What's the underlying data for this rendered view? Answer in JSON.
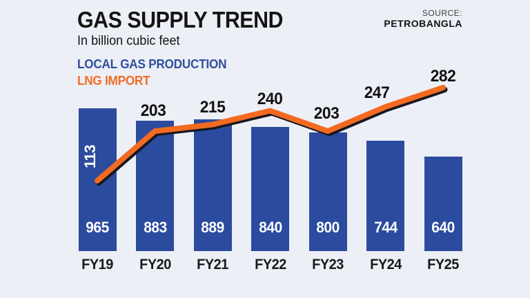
{
  "header": {
    "title": "GAS SUPPLY TREND",
    "subtitle": "In billion cubic feet",
    "source_label": "SOURCE:",
    "source_value": "PETROBANGLA"
  },
  "legend": {
    "bars_label": "LOCAL GAS PRODUCTION",
    "line_label": "LNG IMPORT"
  },
  "colors": {
    "background": "#edeff6",
    "bar": "#2b4b9e",
    "line": "#f36a21",
    "line_shadow": "#17171f",
    "heading_text": "#141414",
    "category_text": "#1a1a1a",
    "line_label_text": "#111111",
    "bar_value_text": "#ffffff",
    "legend_bars_text": "#2d4f9e",
    "legend_line_text": "#f26b26",
    "source_label_text": "#3c3c3c",
    "source_value_text": "#121212"
  },
  "chart_data": {
    "type": "bar",
    "subtype": "bar-with-line-overlay",
    "title": "GAS SUPPLY TREND",
    "subtitle": "In billion cubic feet",
    "unit": "billion cubic feet",
    "categories": [
      "FY19",
      "FY20",
      "FY21",
      "FY22",
      "FY23",
      "FY24",
      "FY25"
    ],
    "series": [
      {
        "name": "LOCAL GAS PRODUCTION",
        "type": "bar",
        "values": [
          965,
          883,
          889,
          840,
          800,
          744,
          640
        ]
      },
      {
        "name": "LNG IMPORT",
        "type": "line",
        "values": [
          113,
          203,
          215,
          240,
          203,
          247,
          282
        ]
      }
    ],
    "value_labels_shown": true,
    "grid": false,
    "axes_shown": false,
    "legend_position": "top-left",
    "source": "PETROBANGLA"
  }
}
